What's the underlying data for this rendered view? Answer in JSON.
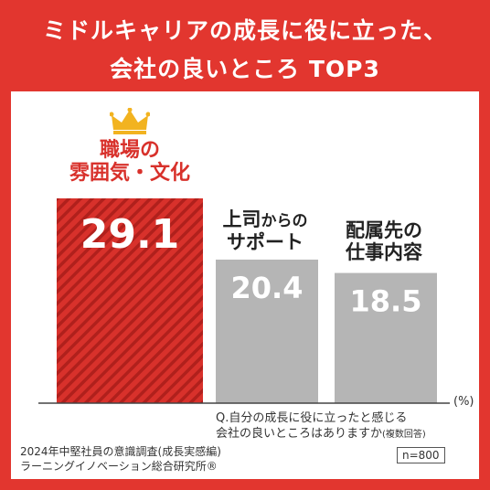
{
  "header": {
    "line1": "ミドルキャリアの成長に役に立った、",
    "line2": "会社の良いところ TOP3"
  },
  "chart_data": {
    "type": "bar",
    "title": "ミドルキャリアの成長に役に立った、会社の良いところ TOP3",
    "unit": "(%)",
    "categories": [
      {
        "line1": "職場の",
        "line2": "雰囲気・文化"
      },
      {
        "line1_main": "上司",
        "line1_small": "からの",
        "line2": "サポート"
      },
      {
        "line1": "配属先の",
        "line2": "仕事内容"
      }
    ],
    "values": [
      29.1,
      20.4,
      18.5
    ],
    "value_labels": [
      "29.1",
      "20.4",
      "18.5"
    ],
    "ylim": [
      0,
      29.1
    ],
    "highlight_index": 0,
    "colors": {
      "highlight": "#d8312b",
      "stripe": "#b0201c",
      "normal": "#b5b5b5"
    }
  },
  "question": {
    "line1": "Q.自分の成長に役に立ったと感じる",
    "line2_main": "会社の良いところはありますか",
    "line2_note": "(複数回答)"
  },
  "sample_size": "n=800",
  "source": {
    "line1": "2024年中堅社員の意識調査(成長実感編)",
    "line2": "ラーニングイノベーション総合研究所®"
  },
  "icons": {
    "crown": "crown-icon"
  }
}
